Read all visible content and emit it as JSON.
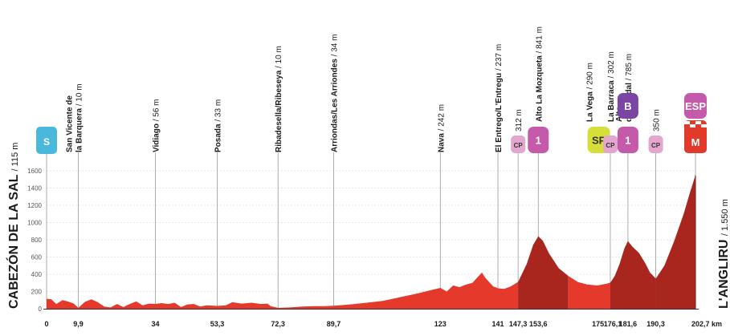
{
  "chart_data": {
    "type": "area",
    "start_label": {
      "name": "CABEZÓN DE LA SAL",
      "alt": "115 m"
    },
    "finish_label": {
      "name": "L'ANGLIRU",
      "alt": "1.550 m"
    },
    "ylim": [
      0,
      1700
    ],
    "y_ticks": [
      0,
      200,
      400,
      600,
      800,
      1000,
      1200,
      1400,
      1600
    ],
    "km_ticks": [
      "0",
      "9,9",
      "34",
      "53,3",
      "72,3",
      "89,7",
      "123",
      "141",
      "147,3",
      "153,6",
      "175",
      "176,1",
      "181,6",
      "190,3",
      "202,7 km"
    ],
    "total_km": 202.7,
    "profile": [
      [
        0,
        115
      ],
      [
        1.5,
        110
      ],
      [
        3,
        55
      ],
      [
        5,
        100
      ],
      [
        7,
        80
      ],
      [
        8.5,
        60
      ],
      [
        9.9,
        10
      ],
      [
        12,
        80
      ],
      [
        14,
        110
      ],
      [
        16,
        75
      ],
      [
        18,
        25
      ],
      [
        20,
        15
      ],
      [
        22,
        55
      ],
      [
        24,
        20
      ],
      [
        26,
        55
      ],
      [
        28,
        85
      ],
      [
        30,
        40
      ],
      [
        32,
        60
      ],
      [
        34,
        56
      ],
      [
        36,
        65
      ],
      [
        38,
        55
      ],
      [
        40,
        70
      ],
      [
        42,
        20
      ],
      [
        44,
        50
      ],
      [
        46,
        55
      ],
      [
        48,
        25
      ],
      [
        50,
        40
      ],
      [
        53.3,
        33
      ],
      [
        56,
        40
      ],
      [
        58,
        75
      ],
      [
        61,
        60
      ],
      [
        64,
        70
      ],
      [
        67,
        55
      ],
      [
        69,
        60
      ],
      [
        70,
        30
      ],
      [
        72.3,
        10
      ],
      [
        76,
        15
      ],
      [
        80,
        25
      ],
      [
        84,
        30
      ],
      [
        87,
        30
      ],
      [
        89.7,
        34
      ],
      [
        95,
        50
      ],
      [
        100,
        70
      ],
      [
        105,
        90
      ],
      [
        110,
        130
      ],
      [
        115,
        170
      ],
      [
        120,
        215
      ],
      [
        123,
        242
      ],
      [
        125,
        200
      ],
      [
        127,
        270
      ],
      [
        129,
        250
      ],
      [
        131,
        280
      ],
      [
        133,
        300
      ],
      [
        135,
        380
      ],
      [
        136,
        420
      ],
      [
        137,
        360
      ],
      [
        138,
        320
      ],
      [
        139.5,
        260
      ],
      [
        141,
        237
      ],
      [
        143,
        230
      ],
      [
        145,
        260
      ],
      [
        147.3,
        312
      ],
      [
        150,
        520
      ],
      [
        152,
        740
      ],
      [
        153.6,
        841
      ],
      [
        155,
        790
      ],
      [
        157,
        640
      ],
      [
        160,
        470
      ],
      [
        163,
        380
      ],
      [
        166,
        310
      ],
      [
        169,
        280
      ],
      [
        172,
        270
      ],
      [
        175,
        290
      ],
      [
        176.1,
        302
      ],
      [
        177.5,
        380
      ],
      [
        179,
        520
      ],
      [
        180.5,
        700
      ],
      [
        181.6,
        785
      ],
      [
        183,
        720
      ],
      [
        185,
        650
      ],
      [
        187,
        530
      ],
      [
        188.5,
        420
      ],
      [
        190.3,
        350
      ],
      [
        193,
        500
      ],
      [
        196,
        780
      ],
      [
        199,
        1100
      ],
      [
        201,
        1350
      ],
      [
        202.7,
        1550
      ]
    ],
    "places": [
      {
        "km": 9.9,
        "name": "San Vicente de la Barquera",
        "lines": [
          "San Vicente de",
          "la Barquera"
        ],
        "alt": "10 m"
      },
      {
        "km": 34,
        "name": "Vidiago",
        "alt": "56 m"
      },
      {
        "km": 53.3,
        "name": "Posada",
        "alt": "33 m"
      },
      {
        "km": 72.3,
        "name": "Ribadesella/Ribeseya",
        "alt": "10 m"
      },
      {
        "km": 89.7,
        "name": "Arriondas/Les Arriondes",
        "alt": "34 m"
      },
      {
        "km": 123,
        "name": "Nava",
        "alt": "242 m"
      },
      {
        "km": 141,
        "name": "El Entrego/L'Entregu",
        "alt": "237 m"
      },
      {
        "km": 147.3,
        "name": "",
        "alt": "312 m"
      },
      {
        "km": 153.6,
        "name": "Alto La Mozqueta",
        "alt": "841 m"
      },
      {
        "km": 175,
        "name": "La Vega",
        "alt": "290 m"
      },
      {
        "km": 176.1,
        "name": "La Barraca",
        "alt": "302 m"
      },
      {
        "km": 181.6,
        "name": "Alto del Cordal",
        "lines": [
          "Alto",
          "del Cordal"
        ],
        "alt": "785 m"
      },
      {
        "km": 190.3,
        "name": "",
        "alt": "350 m"
      }
    ],
    "markers": [
      {
        "km": 0,
        "label": "S",
        "kind": "start",
        "color": "#4ab8dc"
      },
      {
        "km": 147.3,
        "label": "CP",
        "kind": "checkpoint",
        "color": "#e4a6cf"
      },
      {
        "km": 153.6,
        "label": "1",
        "kind": "category-1",
        "color": "#c45aa9"
      },
      {
        "km": 175,
        "label": "SP",
        "kind": "sprint",
        "color": "#d6df3a",
        "offset_km": -2.5
      },
      {
        "km": 176.1,
        "label": "CP",
        "kind": "checkpoint",
        "color": "#e4a6cf"
      },
      {
        "km": 181.6,
        "label": "B",
        "kind": "bonus",
        "color": "#7a45a3"
      },
      {
        "km": 181.6,
        "label": "1",
        "kind": "category-1",
        "color": "#c45aa9"
      },
      {
        "km": 190.3,
        "label": "CP",
        "kind": "checkpoint",
        "color": "#e4a6cf"
      },
      {
        "km": 202.7,
        "label": "ESP",
        "kind": "special",
        "color": "#c45aa9"
      },
      {
        "km": 202.7,
        "label": "M",
        "kind": "finish",
        "color": "#e13a2a"
      }
    ],
    "colors": {
      "flat": "#e4392b",
      "climb": "#a8261d",
      "grid": "#cfcfcf",
      "text": "#1a1a1a",
      "axis": "#555555"
    },
    "grid": true
  }
}
